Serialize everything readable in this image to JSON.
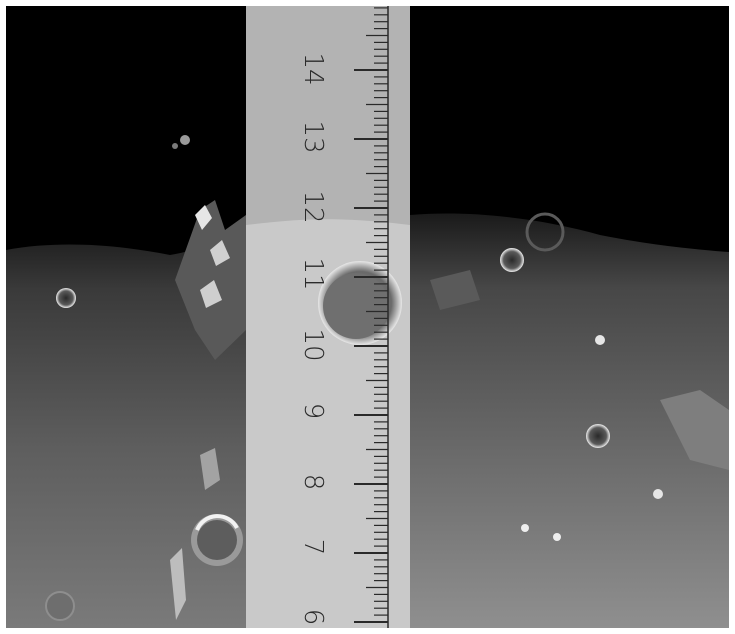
{
  "image": {
    "description": "",
    "ruler": {
      "numbers": [
        "6",
        "7",
        "8",
        "9",
        "10",
        "11",
        "12",
        "13",
        "14"
      ]
    }
  },
  "colors": {
    "sky": "#000000",
    "ruler": "#b5b5b5"
  }
}
